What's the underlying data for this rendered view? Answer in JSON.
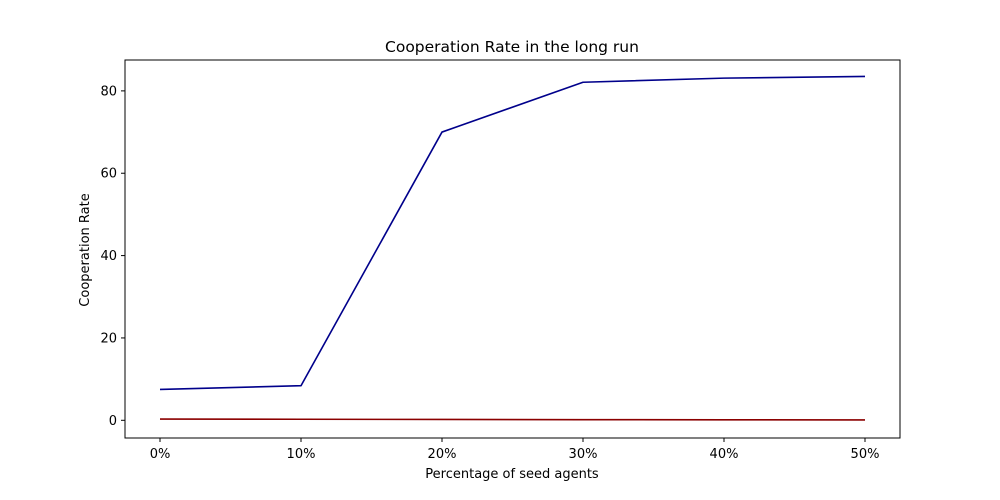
{
  "chart_data": {
    "type": "line",
    "title": "Cooperation Rate in the long run",
    "xlabel": "Percentage of seed agents",
    "ylabel": "Cooperation Rate",
    "categories": [
      "0%",
      "10%",
      "20%",
      "30%",
      "40%",
      "50%"
    ],
    "yticks": [
      0,
      20,
      40,
      60,
      80
    ],
    "ylim": [
      -4.3,
      87.5
    ],
    "grid": false,
    "legend": "none",
    "series": [
      {
        "name": "series-blue",
        "color": "#00008b",
        "values": [
          7.5,
          8.4,
          70.0,
          82.1,
          83.1,
          83.5
        ]
      },
      {
        "name": "series-red",
        "color": "#8b0000",
        "values": [
          0.3,
          0.25,
          0.2,
          0.15,
          0.12,
          0.08
        ]
      }
    ]
  }
}
